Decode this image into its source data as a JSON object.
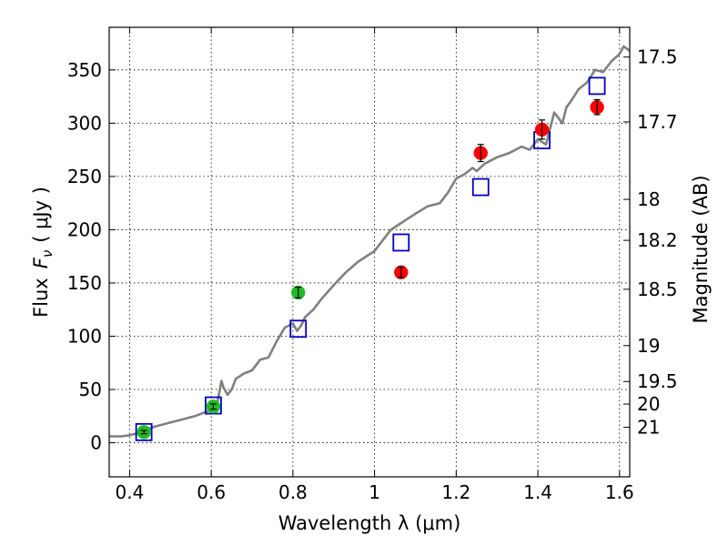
{
  "chart_data": {
    "type": "scatter",
    "xlabel": "Wavelength  λ (μm)",
    "ylabel_text": "Flux",
    "ylabel_symbol": "F",
    "ylabel_subscript": "ν",
    "ylabel_unit": "( μJy )",
    "y2label": "Magnitude (AB)",
    "xlim": [
      0.35,
      1.625
    ],
    "ylim": [
      -32,
      390
    ],
    "grid": true,
    "x_ticks": [
      0.4,
      0.6,
      0.8,
      1.0,
      1.2,
      1.4,
      1.6
    ],
    "x_tick_labels": [
      "0.4",
      "0.6",
      "0.8",
      "1",
      "1.2",
      "1.4",
      "1.6"
    ],
    "y_ticks": [
      0,
      50,
      100,
      150,
      200,
      250,
      300,
      350
    ],
    "y_tick_labels": [
      "0",
      "50",
      "100",
      "150",
      "200",
      "250",
      "300",
      "350"
    ],
    "magnitude_ticks": [
      {
        "label": "17.5",
        "flux": 362.1
      },
      {
        "label": "17.7",
        "flux": 301.2
      },
      {
        "label": "18",
        "flux": 228.5
      },
      {
        "label": "18.2",
        "flux": 190.0
      },
      {
        "label": "18.5",
        "flux": 144.1
      },
      {
        "label": "19",
        "flux": 91.2
      },
      {
        "label": "19.5",
        "flux": 57.5
      },
      {
        "label": "20",
        "flux": 36.3
      },
      {
        "label": "21",
        "flux": 14.5
      }
    ],
    "series": [
      {
        "name": "model spectrum",
        "kind": "line",
        "color": "#808080",
        "x": [
          0.35,
          0.38,
          0.4,
          0.42,
          0.44,
          0.46,
          0.48,
          0.5,
          0.52,
          0.54,
          0.56,
          0.58,
          0.6,
          0.615,
          0.625,
          0.63,
          0.64,
          0.65,
          0.66,
          0.68,
          0.7,
          0.72,
          0.74,
          0.76,
          0.78,
          0.8,
          0.81,
          0.82,
          0.83,
          0.85,
          0.87,
          0.9,
          0.93,
          0.96,
          1.0,
          1.02,
          1.04,
          1.06,
          1.08,
          1.1,
          1.13,
          1.16,
          1.18,
          1.2,
          1.22,
          1.24,
          1.25,
          1.27,
          1.3,
          1.33,
          1.36,
          1.38,
          1.4,
          1.42,
          1.44,
          1.46,
          1.47,
          1.48,
          1.5,
          1.52,
          1.54,
          1.56,
          1.58,
          1.6,
          1.61,
          1.625
        ],
        "y": [
          6,
          6,
          7,
          9,
          12,
          15,
          17,
          19,
          21,
          23,
          25,
          28,
          31,
          38,
          58,
          52,
          45,
          50,
          60,
          65,
          68,
          78,
          80,
          95,
          108,
          112,
          105,
          110,
          118,
          125,
          135,
          148,
          160,
          170,
          180,
          190,
          200,
          205,
          210,
          215,
          222,
          225,
          235,
          248,
          252,
          258,
          255,
          262,
          268,
          272,
          278,
          275,
          285,
          280,
          310,
          300,
          315,
          320,
          332,
          338,
          350,
          348,
          358,
          365,
          372,
          368
        ]
      },
      {
        "name": "model photometry",
        "kind": "open-square",
        "color": "#0000cc",
        "x": [
          0.435,
          0.605,
          0.813,
          1.065,
          1.26,
          1.41,
          1.545
        ],
        "y": [
          10,
          35,
          107,
          188,
          240,
          284,
          335
        ]
      },
      {
        "name": "optical photometry",
        "kind": "filled-circle",
        "color": "#22bb22",
        "x": [
          0.435,
          0.605,
          0.813
        ],
        "y": [
          10,
          34,
          141
        ],
        "yerr": [
          1.5,
          2.5,
          5
        ]
      },
      {
        "name": "near-infrared photometry",
        "kind": "filled-circle",
        "color": "#ff0000",
        "x": [
          1.065,
          1.26,
          1.41,
          1.545
        ],
        "y": [
          160,
          272,
          294,
          315
        ],
        "yerr": [
          5,
          8,
          9,
          7
        ]
      }
    ]
  }
}
